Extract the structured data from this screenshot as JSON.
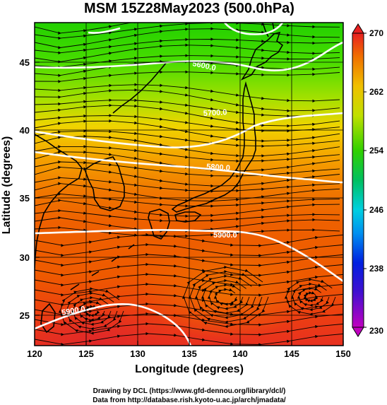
{
  "title": "MSM 15Z28May2023 (500.0hPa)",
  "x_axis": {
    "label": "Longitude (degrees)",
    "range": [
      120,
      150
    ],
    "ticks": [
      "120",
      "125",
      "130",
      "135",
      "140",
      "145",
      "150"
    ]
  },
  "y_axis": {
    "label": "Latitude  (degrees)",
    "range": [
      22.4,
      47.6
    ],
    "ticks": [
      "25",
      "30",
      "35",
      "40",
      "45"
    ]
  },
  "colorbar": {
    "range": [
      230,
      270
    ],
    "ticks": [
      "230",
      "238",
      "246",
      "254",
      "262",
      "270"
    ]
  },
  "contours": [
    {
      "value": 5600,
      "label": "5600.0"
    },
    {
      "value": 5700,
      "label": "5700.0"
    },
    {
      "value": 5800,
      "label": "5800.0"
    },
    {
      "value": 5900,
      "label": "5900.0"
    }
  ],
  "credits": {
    "line1": "Drawing by DCL (https://www.gfd-dennou.org/library/dcl/)",
    "line2": "Data from http://database.rish.kyoto-u.ac.jp/arch/jmadata/"
  }
}
